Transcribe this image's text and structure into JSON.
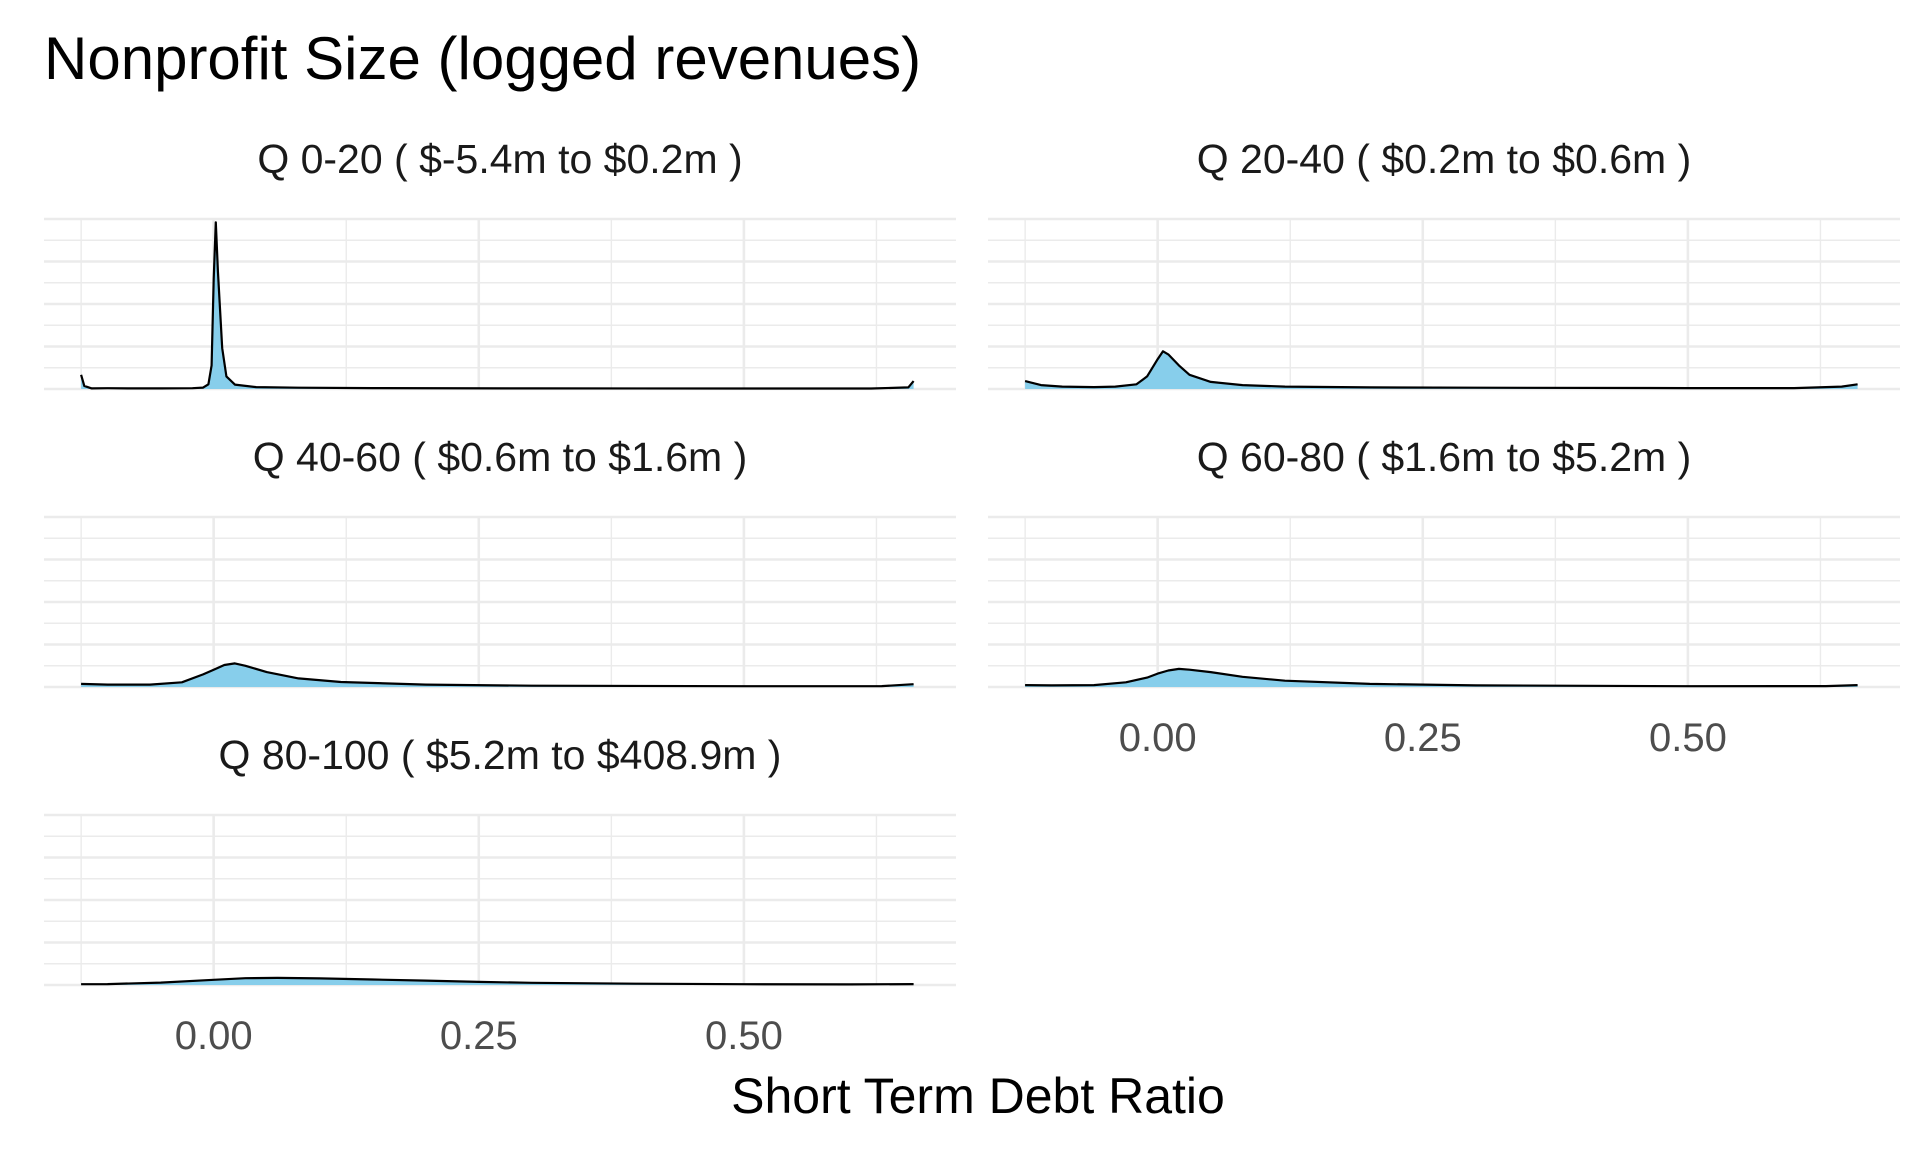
{
  "chart_data": {
    "type": "area",
    "title": "Nonprofit Size (logged revenues)",
    "xlabel": "Short Term Debt Ratio",
    "ylabel": "",
    "xlim": [
      -0.16,
      0.7
    ],
    "x_ticks": [
      0.0,
      0.25,
      0.5
    ],
    "x_tick_labels": [
      "0.00",
      "0.25",
      "0.50"
    ],
    "y_axis_labels_shown": false,
    "grid": true,
    "fill_color": "#87CEEB",
    "line_color": "#000000",
    "grid_color": "#ebebeb",
    "layout": "facet_wrap, 2 columns, shared y scale",
    "panels": [
      {
        "strip": "Q 0-20   ( $-5.4m to $0.2m )",
        "x": [
          -0.125,
          -0.122,
          -0.115,
          -0.1,
          -0.08,
          -0.05,
          -0.02,
          -0.01,
          -0.005,
          -0.002,
          0.0,
          0.002,
          0.004,
          0.008,
          0.012,
          0.02,
          0.04,
          0.08,
          0.15,
          0.3,
          0.5,
          0.62,
          0.655,
          0.66
        ],
        "density": [
          0.9,
          0.2,
          0.04,
          0.05,
          0.04,
          0.04,
          0.05,
          0.09,
          0.3,
          1.5,
          7.0,
          10.6,
          7.5,
          2.6,
          0.8,
          0.28,
          0.12,
          0.08,
          0.06,
          0.04,
          0.03,
          0.03,
          0.1,
          0.5
        ]
      },
      {
        "strip": "Q 20-40   ( $0.2m to $0.6m )",
        "x": [
          -0.125,
          -0.11,
          -0.09,
          -0.06,
          -0.04,
          -0.02,
          -0.01,
          0.0,
          0.005,
          0.01,
          0.02,
          0.03,
          0.05,
          0.08,
          0.12,
          0.2,
          0.3,
          0.5,
          0.6,
          0.645,
          0.66
        ],
        "density": [
          0.5,
          0.25,
          0.15,
          0.12,
          0.15,
          0.3,
          0.8,
          1.9,
          2.4,
          2.2,
          1.5,
          0.9,
          0.45,
          0.25,
          0.15,
          0.1,
          0.08,
          0.06,
          0.06,
          0.15,
          0.3
        ]
      },
      {
        "strip": "Q 40-60   ( $0.6m to $1.6m )",
        "x": [
          -0.125,
          -0.1,
          -0.06,
          -0.03,
          -0.01,
          0.0,
          0.01,
          0.02,
          0.03,
          0.05,
          0.08,
          0.12,
          0.2,
          0.3,
          0.5,
          0.63,
          0.66
        ],
        "density": [
          0.2,
          0.15,
          0.15,
          0.3,
          0.8,
          1.1,
          1.4,
          1.5,
          1.35,
          0.95,
          0.55,
          0.32,
          0.15,
          0.08,
          0.05,
          0.06,
          0.18
        ]
      },
      {
        "strip": "Q 60-80   ( $1.6m to $5.2m )",
        "x": [
          -0.125,
          -0.1,
          -0.06,
          -0.03,
          -0.01,
          0.0,
          0.01,
          0.02,
          0.03,
          0.05,
          0.08,
          0.12,
          0.2,
          0.3,
          0.5,
          0.63,
          0.66
        ],
        "density": [
          0.12,
          0.1,
          0.12,
          0.3,
          0.6,
          0.85,
          1.05,
          1.15,
          1.1,
          0.95,
          0.65,
          0.4,
          0.2,
          0.1,
          0.05,
          0.06,
          0.12
        ]
      },
      {
        "strip": "Q 80-100   ( $5.2m to $408.9m )",
        "x": [
          -0.125,
          -0.1,
          -0.05,
          0.0,
          0.03,
          0.06,
          0.1,
          0.15,
          0.2,
          0.25,
          0.3,
          0.4,
          0.5,
          0.6,
          0.66
        ],
        "density": [
          0.05,
          0.06,
          0.15,
          0.33,
          0.43,
          0.45,
          0.42,
          0.35,
          0.28,
          0.2,
          0.14,
          0.08,
          0.05,
          0.04,
          0.06
        ]
      }
    ]
  }
}
